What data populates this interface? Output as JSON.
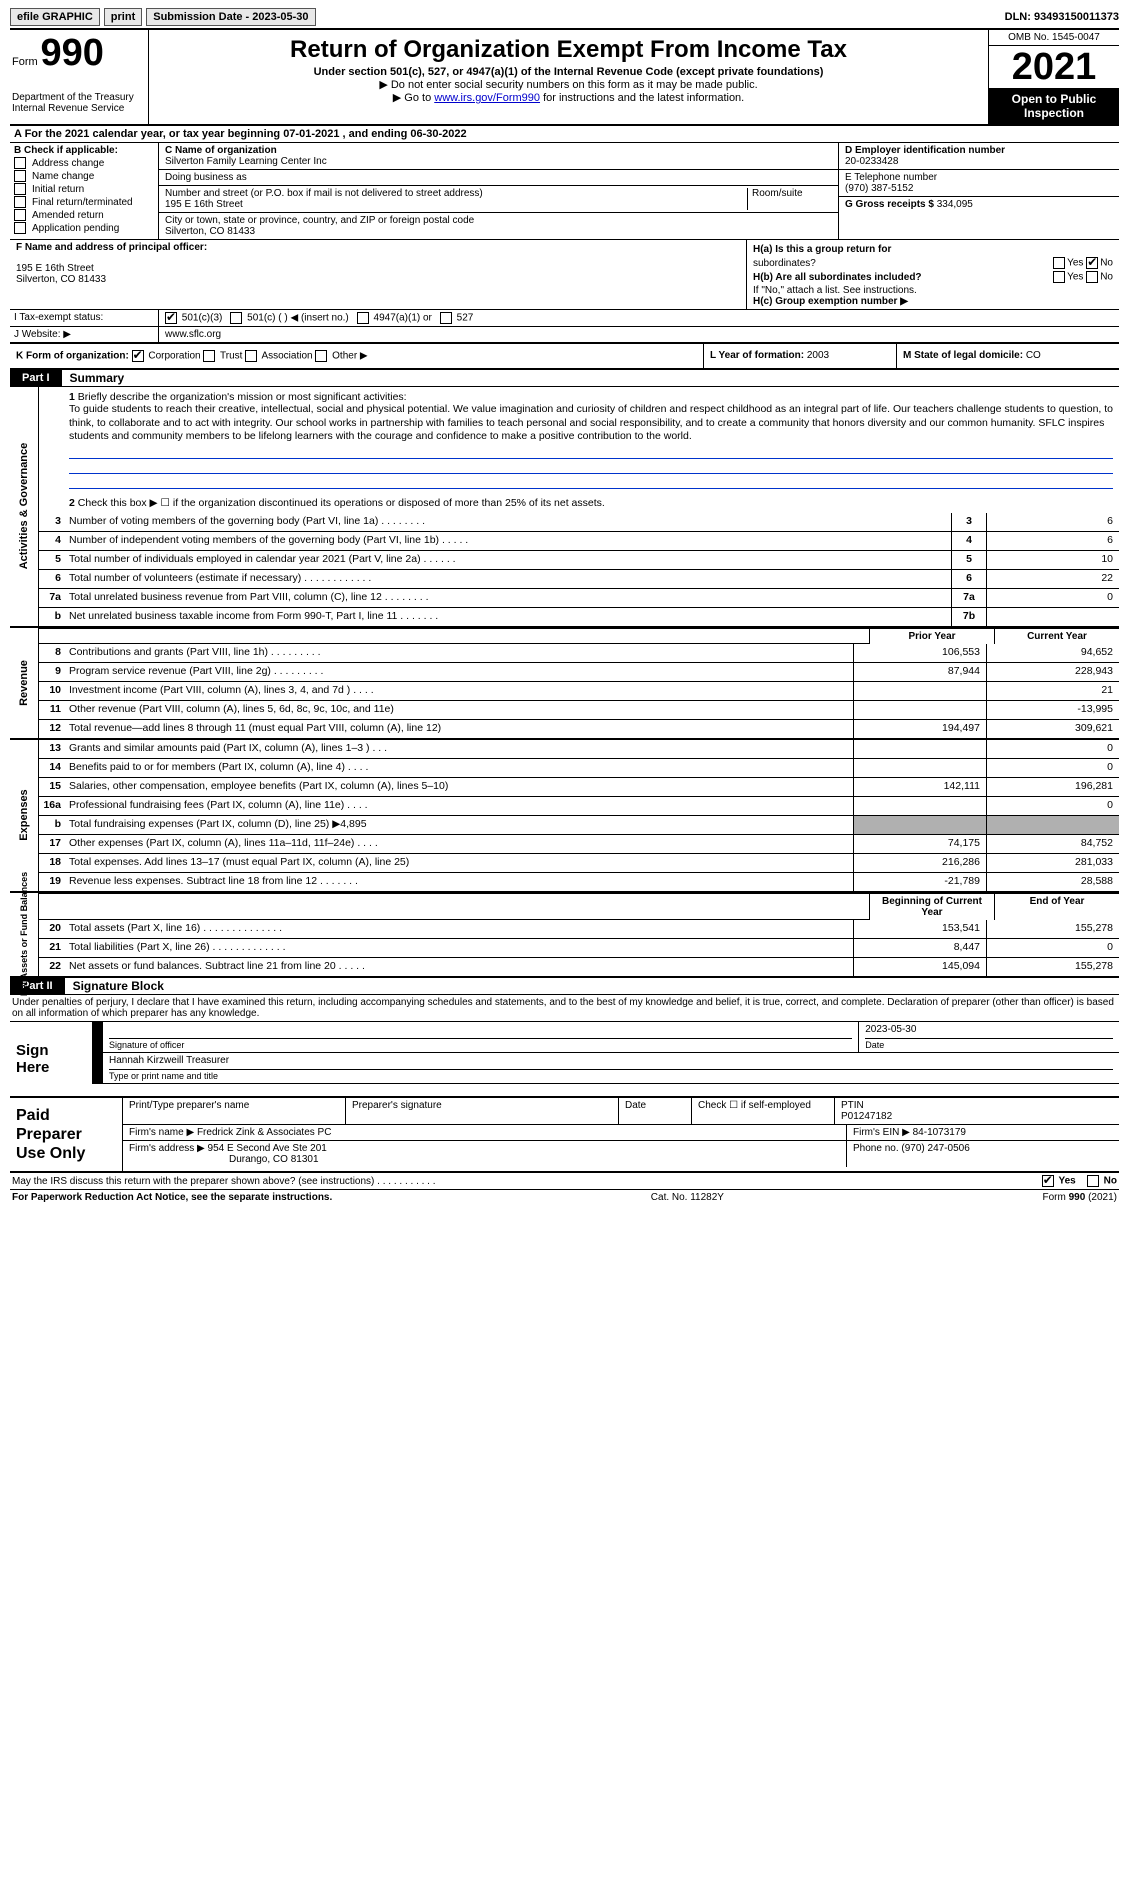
{
  "topbar": {
    "efile": "efile GRAPHIC",
    "print": "print",
    "subdate_lbl": "Submission Date - 2023-05-30",
    "dln": "DLN: 93493150011373"
  },
  "header": {
    "form_prefix": "Form",
    "form_no": "990",
    "dept": "Department of the Treasury",
    "irs": "Internal Revenue Service",
    "title": "Return of Organization Exempt From Income Tax",
    "sub1": "Under section 501(c), 527, or 4947(a)(1) of the Internal Revenue Code (except private foundations)",
    "sub2": "▶ Do not enter social security numbers on this form as it may be made public.",
    "sub3_a": "▶ Go to ",
    "sub3_link": "www.irs.gov/Form990",
    "sub3_b": " for instructions and the latest information.",
    "omb": "OMB No. 1545-0047",
    "year": "2021",
    "open1": "Open to Public",
    "open2": "Inspection"
  },
  "rowA": "A For the 2021 calendar year, or tax year beginning 07-01-2021   , and ending 06-30-2022",
  "sectionB": {
    "hdr": "B Check if applicable:",
    "items": [
      "Address change",
      "Name change",
      "Initial return",
      "Final return/terminated",
      "Amended return",
      "Application pending"
    ]
  },
  "sectionC": {
    "c_lbl": "C Name of organization",
    "c_val": "Silverton Family Learning Center Inc",
    "dba_lbl": "Doing business as",
    "dba_val": "",
    "addr_lbl": "Number and street (or P.O. box if mail is not delivered to street address)",
    "addr_val": "195 E 16th Street",
    "room_lbl": "Room/suite",
    "city_lbl": "City or town, state or province, country, and ZIP or foreign postal code",
    "city_val": "Silverton, CO  81433"
  },
  "sectionD": {
    "d_lbl": "D Employer identification number",
    "d_val": "20-0233428",
    "e_lbl": "E Telephone number",
    "e_val": "(970) 387-5152",
    "g_lbl": "G Gross receipts $",
    "g_val": "334,095"
  },
  "sectionF": {
    "f_lbl": "F Name and address of principal officer:",
    "f_line1": "195 E 16th Street",
    "f_line2": "Silverton, CO  81433"
  },
  "sectionH": {
    "ha_lbl": "H(a)  Is this a group return for",
    "ha_lbl2": "subordinates?",
    "hb_lbl": "H(b)  Are all subordinates included?",
    "hb_note": "If \"No,\" attach a list. See instructions.",
    "hc_lbl": "H(c)  Group exemption number ▶",
    "yes": "Yes",
    "no": "No"
  },
  "taxRow": {
    "lbl": "I   Tax-exempt status:",
    "opt1": "501(c)(3)",
    "opt2": "501(c) (  ) ◀ (insert no.)",
    "opt3": "4947(a)(1) or",
    "opt4": "527"
  },
  "webRow": {
    "lbl": "J   Website: ▶",
    "val": "www.sflc.org"
  },
  "klRow": {
    "k_lbl": "K Form of organization:",
    "k_opts": [
      "Corporation",
      "Trust",
      "Association",
      "Other ▶"
    ],
    "l_lbl": "L Year of formation:",
    "l_val": "2003",
    "m_lbl": "M State of legal domicile:",
    "m_val": "CO"
  },
  "part1": {
    "tag": "Part I",
    "title": "Summary"
  },
  "gov_side": "Activities & Governance",
  "gov": {
    "line1_lbl": "Briefly describe the organization's mission or most significant activities:",
    "line1_text": "To guide students to reach their creative, intellectual, social and physical potential. We value imagination and curiosity of children and respect childhood as an integral part of life. Our teachers challenge students to question, to think, to collaborate and to act with integrity. Our school works in partnership with families to teach personal and social responsibility, and to create a community that honors diversity and our common humanity. SFLC inspires students and community members to be lifelong learners with the courage and confidence to make a positive contribution to the world.",
    "line2": "Check this box ▶ ☐  if the organization discontinued its operations or disposed of more than 25% of its net assets.",
    "rows": [
      {
        "n": "3",
        "t": "Number of voting members of the governing body (Part VI, line 1a)   .    .    .    .    .    .    .    .",
        "box": "3",
        "v": "6"
      },
      {
        "n": "4",
        "t": "Number of independent voting members of the governing body (Part VI, line 1b)   .    .    .    .    .",
        "box": "4",
        "v": "6"
      },
      {
        "n": "5",
        "t": "Total number of individuals employed in calendar year 2021 (Part V, line 2a)   .    .    .    .    .    .",
        "box": "5",
        "v": "10"
      },
      {
        "n": "6",
        "t": "Total number of volunteers (estimate if necessary)   .    .    .    .    .    .    .    .    .    .    .    .",
        "box": "6",
        "v": "22"
      },
      {
        "n": "7a",
        "t": "Total unrelated business revenue from Part VIII, column (C), line 12   .    .    .    .    .    .    .    .",
        "box": "7a",
        "v": "0"
      },
      {
        "n": "b",
        "t": "Net unrelated business taxable income from Form 990-T, Part I, line 11   .    .    .    .    .    .    .",
        "box": "7b",
        "v": ""
      }
    ]
  },
  "colhdr": {
    "prior": "Prior Year",
    "curr": "Current Year"
  },
  "rev_side": "Revenue",
  "rev_rows": [
    {
      "n": "8",
      "t": "Contributions and grants (Part VIII, line 1h)   .    .    .    .    .    .    .    .    .",
      "p": "106,553",
      "c": "94,652"
    },
    {
      "n": "9",
      "t": "Program service revenue (Part VIII, line 2g)   .    .    .    .    .    .    .    .    .",
      "p": "87,944",
      "c": "228,943"
    },
    {
      "n": "10",
      "t": "Investment income (Part VIII, column (A), lines 3, 4, and 7d )   .    .    .    .",
      "p": "",
      "c": "21"
    },
    {
      "n": "11",
      "t": "Other revenue (Part VIII, column (A), lines 5, 6d, 8c, 9c, 10c, and 11e)",
      "p": "",
      "c": "-13,995"
    },
    {
      "n": "12",
      "t": "Total revenue—add lines 8 through 11 (must equal Part VIII, column (A), line 12)",
      "p": "194,497",
      "c": "309,621"
    }
  ],
  "exp_side": "Expenses",
  "exp_rows": [
    {
      "n": "13",
      "t": "Grants and similar amounts paid (Part IX, column (A), lines 1–3 )   .    .    .",
      "p": "",
      "c": "0"
    },
    {
      "n": "14",
      "t": "Benefits paid to or for members (Part IX, column (A), line 4)   .    .    .    .",
      "p": "",
      "c": "0"
    },
    {
      "n": "15",
      "t": "Salaries, other compensation, employee benefits (Part IX, column (A), lines 5–10)",
      "p": "142,111",
      "c": "196,281"
    },
    {
      "n": "16a",
      "t": "Professional fundraising fees (Part IX, column (A), line 11e)   .    .    .    .",
      "p": "",
      "c": "0"
    },
    {
      "n": "b",
      "t": "Total fundraising expenses (Part IX, column (D), line 25) ▶4,895",
      "p": "shade",
      "c": "shade"
    },
    {
      "n": "17",
      "t": "Other expenses (Part IX, column (A), lines 11a–11d, 11f–24e)   .    .    .    .",
      "p": "74,175",
      "c": "84,752"
    },
    {
      "n": "18",
      "t": "Total expenses. Add lines 13–17 (must equal Part IX, column (A), line 25)",
      "p": "216,286",
      "c": "281,033"
    },
    {
      "n": "19",
      "t": "Revenue less expenses. Subtract line 18 from line 12   .    .    .    .    .    .    .",
      "p": "-21,789",
      "c": "28,588"
    }
  ],
  "na_side": "Net Assets or Fund Balances",
  "na_hdr": {
    "b": "Beginning of Current Year",
    "e": "End of Year"
  },
  "na_rows": [
    {
      "n": "20",
      "t": "Total assets (Part X, line 16)   .    .    .    .    .    .    .    .    .    .    .    .    .    .",
      "p": "153,541",
      "c": "155,278"
    },
    {
      "n": "21",
      "t": "Total liabilities (Part X, line 26)   .    .    .    .    .    .    .    .    .    .    .    .    .",
      "p": "8,447",
      "c": "0"
    },
    {
      "n": "22",
      "t": "Net assets or fund balances. Subtract line 21 from line 20   .    .    .    .    .",
      "p": "145,094",
      "c": "155,278"
    }
  ],
  "part2": {
    "tag": "Part II",
    "title": "Signature Block"
  },
  "penalty": "Under penalties of perjury, I declare that I have examined this return, including accompanying schedules and statements, and to the best of my knowledge and belief, it is true, correct, and complete. Declaration of preparer (other than officer) is based on all information of which preparer has any knowledge.",
  "sign": {
    "left1": "Sign",
    "left2": "Here",
    "sig_lbl": "Signature of officer",
    "date": "2023-05-30",
    "date_lbl": "Date",
    "name": "Hannah Kirzweill  Treasurer",
    "name_lbl": "Type or print name and title"
  },
  "prep": {
    "left1": "Paid",
    "left2": "Preparer",
    "left3": "Use Only",
    "r1c1_lbl": "Print/Type preparer's name",
    "r1c2_lbl": "Preparer's signature",
    "r1c3_lbl": "Date",
    "r1c4_lbl": "Check ☐ if self-employed",
    "r1c5_lbl": "PTIN",
    "r1c5_val": "P01247182",
    "r2_lbl": "Firm's name    ▶",
    "r2_val": "Fredrick Zink & Associates PC",
    "r2b_lbl": "Firm's EIN ▶",
    "r2b_val": "84-1073179",
    "r3_lbl": "Firm's address ▶",
    "r3_val": "954 E Second Ave Ste 201",
    "r3_val2": "Durango, CO  81301",
    "r3b_lbl": "Phone no.",
    "r3b_val": "(970) 247-0506"
  },
  "discuss": {
    "text": "May the IRS discuss this return with the preparer shown above? (see instructions)   .    .    .    .    .    .    .    .    .    .    .",
    "yes": "Yes",
    "no": "No"
  },
  "footer": {
    "left": "For Paperwork Reduction Act Notice, see the separate instructions.",
    "mid": "Cat. No. 11282Y",
    "right": "Form 990 (2021)"
  }
}
